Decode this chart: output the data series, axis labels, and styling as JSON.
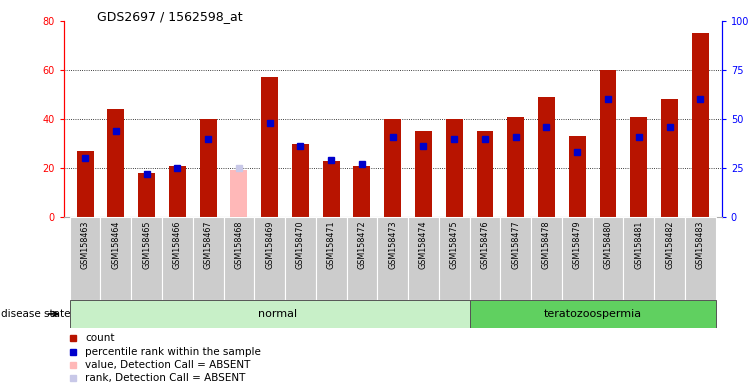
{
  "title": "GDS2697 / 1562598_at",
  "samples": [
    "GSM158463",
    "GSM158464",
    "GSM158465",
    "GSM158466",
    "GSM158467",
    "GSM158468",
    "GSM158469",
    "GSM158470",
    "GSM158471",
    "GSM158472",
    "GSM158473",
    "GSM158474",
    "GSM158475",
    "GSM158476",
    "GSM158477",
    "GSM158478",
    "GSM158479",
    "GSM158480",
    "GSM158481",
    "GSM158482",
    "GSM158483"
  ],
  "count_values": [
    27,
    44,
    18,
    21,
    40,
    19,
    57,
    30,
    23,
    21,
    40,
    35,
    40,
    35,
    41,
    49,
    33,
    60,
    41,
    48,
    75
  ],
  "rank_values": [
    30,
    44,
    22,
    25,
    40,
    25,
    48,
    36,
    29,
    27,
    41,
    36,
    40,
    40,
    41,
    46,
    33,
    60,
    41,
    46,
    60
  ],
  "absent_mask": [
    0,
    0,
    0,
    0,
    0,
    1,
    0,
    0,
    0,
    0,
    0,
    0,
    0,
    0,
    0,
    0,
    0,
    0,
    0,
    0,
    0
  ],
  "disease_state_split": 13,
  "ylim_left": [
    0,
    80
  ],
  "ylim_right": [
    0,
    100
  ],
  "yticks_left": [
    0,
    20,
    40,
    60,
    80
  ],
  "yticks_right": [
    0,
    25,
    50,
    75,
    100
  ],
  "bar_color": "#b81400",
  "rank_color": "#0000cc",
  "absent_bar_color": "#ffb8b8",
  "absent_rank_color": "#c8c8e8",
  "normal_green_light": "#c8f0c8",
  "normal_green_dark": "#60d060",
  "legend_items": [
    {
      "label": "count",
      "color": "#b81400"
    },
    {
      "label": "percentile rank within the sample",
      "color": "#0000cc"
    },
    {
      "label": "value, Detection Call = ABSENT",
      "color": "#ffb8b8"
    },
    {
      "label": "rank, Detection Call = ABSENT",
      "color": "#c8c8e8"
    }
  ]
}
